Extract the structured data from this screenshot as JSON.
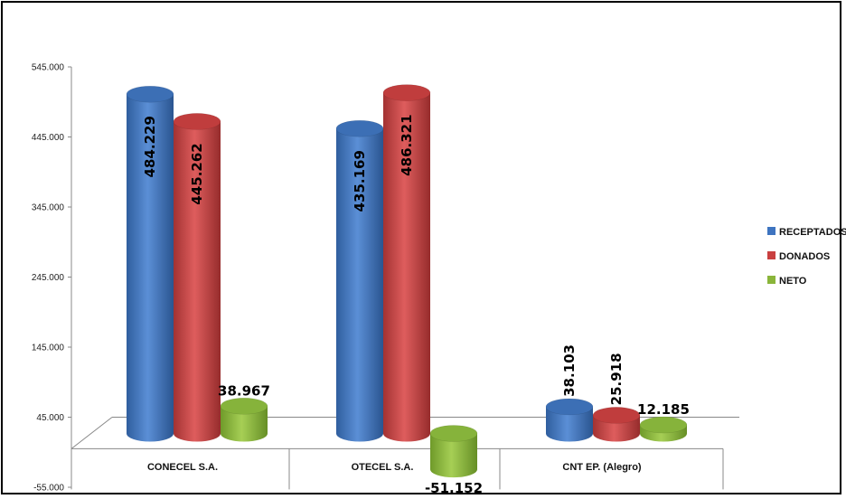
{
  "chart_data": {
    "type": "bar",
    "categories": [
      "CONECEL S.A.",
      "OTECEL S.A.",
      "CNT EP. (Alegro)"
    ],
    "series": [
      {
        "name": "RECEPTADOS",
        "values": [
          484229,
          435169,
          38103
        ],
        "labels": [
          "484.229",
          "435.169",
          "38.103"
        ],
        "color": "#3e74c0"
      },
      {
        "name": "DONADOS",
        "values": [
          445262,
          486321,
          25918
        ],
        "labels": [
          "445.262",
          "486.321",
          "25.918"
        ],
        "color": "#c94040"
      },
      {
        "name": "NETO",
        "values": [
          38967,
          -51152,
          12185
        ],
        "labels": [
          "38.967",
          "-51.152",
          "12.185"
        ],
        "color": "#8ab53a"
      }
    ],
    "y_ticks": [
      545000,
      445000,
      345000,
      245000,
      145000,
      45000,
      -55000
    ],
    "y_tick_labels": [
      "545.000",
      "445.000",
      "345.000",
      "245.000",
      "145.000",
      "45.000",
      "-55.000"
    ],
    "ylim": [
      -55000,
      545000
    ],
    "legend_position": "right",
    "grid": false
  }
}
